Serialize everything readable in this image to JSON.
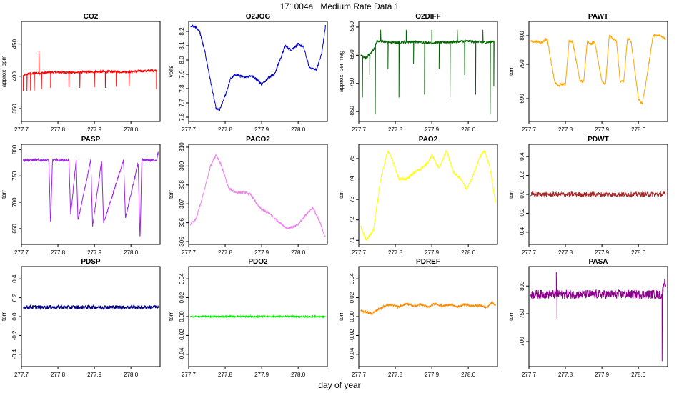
{
  "page": {
    "title": "171004a   Medium Rate Data 1",
    "xlabel": "day of year"
  },
  "x_axis": {
    "range": [
      277.7,
      278.08
    ],
    "ticks": [
      277.7,
      277.8,
      277.9,
      278.0
    ],
    "tick_labels": [
      "277.7",
      "277.8",
      "277.9",
      "278.0"
    ]
  },
  "chart_data": [
    {
      "type": "line",
      "title": "CO2",
      "ylabel": "approx. ppm",
      "color": "#ff0000",
      "ylim": [
        330,
        485
      ],
      "yticks": [
        350,
        400,
        450
      ],
      "ytick_labels": [
        "350",
        "400",
        "450"
      ],
      "series": [
        {
          "x": [
            277.705,
            277.72,
            277.75,
            277.78,
            277.8,
            277.85,
            277.9,
            277.95,
            278.0,
            278.03,
            278.06,
            278.07
          ],
          "y": [
            401,
            404,
            405,
            406,
            406,
            406,
            407,
            407,
            407,
            408,
            409,
            409
          ],
          "spikes": [
            [
              277.705,
              377
            ],
            [
              277.715,
              377
            ],
            [
              277.725,
              378
            ],
            [
              277.735,
              377
            ],
            [
              277.748,
              438
            ],
            [
              277.755,
              380
            ],
            [
              277.78,
              382
            ],
            [
              277.83,
              383
            ],
            [
              277.86,
              382
            ],
            [
              277.9,
              383
            ],
            [
              277.93,
              382
            ],
            [
              277.96,
              384
            ],
            [
              277.995,
              385
            ],
            [
              278.07,
              380
            ]
          ]
        }
      ]
    },
    {
      "type": "line",
      "title": "O2JOG",
      "ylabel": "volts",
      "color": "#0000cc",
      "ylim": [
        7.57,
        8.27
      ],
      "yticks": [
        7.6,
        7.7,
        7.8,
        7.9,
        8.0,
        8.1,
        8.2
      ],
      "ytick_labels": [
        "7.6",
        "7.7",
        "7.8",
        "7.9",
        "8.0",
        "8.1",
        "8.2"
      ],
      "series": [
        {
          "x": [
            277.705,
            277.72,
            277.73,
            277.745,
            277.76,
            277.775,
            277.785,
            277.8,
            277.815,
            277.83,
            277.85,
            277.87,
            277.885,
            277.9,
            277.92,
            277.935,
            277.95,
            277.965,
            277.98,
            278.0,
            278.015,
            278.03,
            278.05,
            278.065,
            278.075
          ],
          "y": [
            8.24,
            8.23,
            8.2,
            8.05,
            7.85,
            7.66,
            7.65,
            7.75,
            7.87,
            7.9,
            7.88,
            7.89,
            7.87,
            7.83,
            7.88,
            7.9,
            8.0,
            8.1,
            8.07,
            8.11,
            8.09,
            7.95,
            7.93,
            8.05,
            8.24
          ]
        }
      ]
    },
    {
      "type": "line",
      "title": "O2DIFF",
      "ylabel": "approx. per meg",
      "color": "#006400",
      "ylim": [
        -885,
        -530
      ],
      "yticks": [
        -850,
        -750,
        -650,
        -550
      ],
      "ytick_labels": [
        "-850",
        "-750",
        "-650",
        "-550"
      ],
      "series": [
        {
          "x": [
            277.705,
            277.72,
            277.74,
            277.75,
            277.8,
            277.85,
            277.9,
            277.95,
            278.0,
            278.05,
            278.07
          ],
          "y": [
            -650,
            -660,
            -630,
            -600,
            -605,
            -602,
            -606,
            -603,
            -600,
            -605,
            -600
          ],
          "spikes": [
            [
              277.71,
              -800
            ],
            [
              277.73,
              -720
            ],
            [
              277.745,
              -860
            ],
            [
              277.76,
              -560
            ],
            [
              277.78,
              -700
            ],
            [
              277.81,
              -800
            ],
            [
              277.83,
              -560
            ],
            [
              277.85,
              -680
            ],
            [
              277.88,
              -790
            ],
            [
              277.9,
              -560
            ],
            [
              277.92,
              -700
            ],
            [
              277.95,
              -800
            ],
            [
              277.97,
              -560
            ],
            [
              277.99,
              -720
            ],
            [
              278.02,
              -790
            ],
            [
              278.04,
              -560
            ],
            [
              278.06,
              -860
            ],
            [
              278.07,
              -760
            ]
          ]
        }
      ]
    },
    {
      "type": "line",
      "title": "PAWT",
      "ylabel": "torr",
      "color": "#ffa500",
      "ylim": [
        650,
        825
      ],
      "yticks": [
        690,
        750,
        800
      ],
      "ytick_labels": [
        "690",
        "750",
        "800"
      ],
      "series": [
        {
          "x": [
            277.705,
            277.72,
            277.735,
            277.75,
            277.77,
            277.78,
            277.79,
            277.8,
            277.81,
            277.82,
            277.84,
            277.85,
            277.86,
            277.87,
            277.88,
            277.9,
            277.91,
            277.92,
            277.94,
            277.95,
            277.96,
            277.97,
            277.98,
            278.0,
            278.01,
            278.02,
            278.04,
            278.06,
            278.075
          ],
          "y": [
            790,
            790,
            788,
            795,
            720,
            712,
            715,
            715,
            790,
            790,
            720,
            720,
            790,
            785,
            790,
            720,
            716,
            800,
            790,
            720,
            720,
            795,
            790,
            690,
            680,
            715,
            800,
            800,
            795
          ]
        }
      ]
    },
    {
      "type": "line",
      "title": "PASP",
      "ylabel": "torr",
      "color": "#a020f0",
      "ylim": [
        620,
        810
      ],
      "yticks": [
        650,
        700,
        750,
        800
      ],
      "ytick_labels": [
        "650",
        "700",
        "750",
        "800"
      ],
      "series": [
        {
          "x": [
            277.705,
            277.72,
            277.775,
            277.78,
            277.785,
            277.81,
            277.83,
            277.835,
            277.85,
            277.855,
            277.89,
            277.895,
            277.92,
            277.925,
            277.98,
            277.985,
            278.02,
            278.025,
            278.03,
            278.07,
            278.075
          ],
          "y": [
            780,
            780,
            780,
            655,
            780,
            780,
            780,
            675,
            780,
            665,
            780,
            655,
            780,
            660,
            780,
            670,
            775,
            625,
            780,
            780,
            795
          ]
        }
      ]
    },
    {
      "type": "line",
      "title": "PACO2",
      "ylabel": "torr",
      "color": "#ee82ee",
      "ylim": [
        304.85,
        310.15
      ],
      "yticks": [
        305,
        306,
        307,
        308,
        309,
        310
      ],
      "ytick_labels": [
        "305",
        "306",
        "307",
        "308",
        "309",
        "310"
      ],
      "series": [
        {
          "x": [
            277.705,
            277.72,
            277.74,
            277.76,
            277.775,
            277.79,
            277.81,
            277.83,
            277.85,
            277.87,
            277.89,
            277.9,
            277.92,
            277.95,
            277.97,
            277.99,
            278.0,
            278.02,
            278.04,
            278.06,
            278.075
          ],
          "y": [
            305.9,
            306.2,
            307.5,
            309.0,
            309.6,
            309.0,
            307.8,
            307.6,
            307.6,
            307.5,
            306.9,
            306.7,
            306.5,
            306.0,
            305.7,
            305.8,
            305.9,
            306.4,
            306.8,
            306.0,
            305.2
          ]
        }
      ]
    },
    {
      "type": "line",
      "title": "PAO2",
      "ylabel": "torr",
      "color": "#ffff00",
      "ylim": [
        70.8,
        75.7
      ],
      "yticks": [
        71,
        72,
        73,
        74,
        75
      ],
      "ytick_labels": [
        "71",
        "72",
        "73",
        "74",
        "75"
      ],
      "series": [
        {
          "x": [
            277.705,
            277.72,
            277.74,
            277.76,
            277.78,
            277.79,
            277.81,
            277.83,
            277.85,
            277.87,
            277.89,
            277.9,
            277.92,
            277.94,
            277.96,
            277.98,
            277.995,
            278.01,
            278.03,
            278.045,
            278.06,
            278.075
          ],
          "y": [
            71.7,
            71.0,
            71.5,
            74.0,
            75.4,
            75.0,
            74.0,
            74.0,
            74.3,
            74.5,
            74.8,
            75.2,
            74.5,
            75.4,
            74.3,
            74.0,
            73.5,
            74.0,
            75.0,
            75.4,
            74.5,
            72.8
          ]
        }
      ]
    },
    {
      "type": "line",
      "title": "PDWT",
      "ylabel": "torr",
      "color": "#a52a2a",
      "ylim": [
        -0.53,
        0.53
      ],
      "yticks": [
        -0.4,
        -0.2,
        0.0,
        0.2,
        0.4
      ],
      "ytick_labels": [
        "-0.4",
        "-0.2",
        "0.0",
        "0.2",
        "0.4"
      ],
      "series": [
        {
          "x": [
            277.705,
            277.75,
            277.8,
            277.85,
            277.9,
            277.95,
            278.0,
            278.05,
            278.075
          ],
          "y": [
            0,
            0,
            0,
            0,
            0,
            0,
            0,
            0,
            0
          ],
          "noise": 0.025
        }
      ]
    },
    {
      "type": "line",
      "title": "PDSP",
      "ylabel": "torr",
      "color": "#000080",
      "ylim": [
        -0.53,
        0.53
      ],
      "yticks": [
        -0.4,
        -0.2,
        0.0,
        0.2,
        0.4
      ],
      "ytick_labels": [
        "-0.4",
        "-0.2",
        "0.0",
        "0.2",
        "0.4"
      ],
      "series": [
        {
          "x": [
            277.705,
            277.75,
            277.8,
            277.85,
            277.9,
            277.95,
            278.0,
            278.05,
            278.075
          ],
          "y": [
            0.1,
            0.1,
            0.1,
            0.1,
            0.1,
            0.1,
            0.1,
            0.1,
            0.1
          ],
          "noise": 0.02
        }
      ]
    },
    {
      "type": "line",
      "title": "PDO2",
      "ylabel": "torr",
      "color": "#00ee00",
      "ylim": [
        -0.053,
        0.053
      ],
      "yticks": [
        -0.04,
        -0.02,
        0.0,
        0.02,
        0.04
      ],
      "ytick_labels": [
        "-0.04",
        "-0.02",
        "0.00",
        "0.02",
        "0.04"
      ],
      "series": [
        {
          "x": [
            277.705,
            277.75,
            277.8,
            277.85,
            277.9,
            277.95,
            278.0,
            278.05,
            278.075
          ],
          "y": [
            0,
            0,
            0,
            0,
            0,
            0,
            0,
            0,
            0
          ],
          "noise": 0.0008
        }
      ]
    },
    {
      "type": "line",
      "title": "PDREF",
      "ylabel": "torr",
      "color": "#ff8c00",
      "ylim": [
        -0.053,
        0.053
      ],
      "yticks": [
        -0.04,
        -0.02,
        0.0,
        0.02,
        0.04
      ],
      "ytick_labels": [
        "-0.04",
        "-0.02",
        "0.00",
        "0.02",
        "0.04"
      ],
      "series": [
        {
          "x": [
            277.705,
            277.72,
            277.735,
            277.75,
            277.77,
            277.79,
            277.81,
            277.83,
            277.85,
            277.87,
            277.89,
            277.91,
            277.93,
            277.95,
            277.97,
            277.99,
            278.01,
            278.03,
            278.05,
            278.065,
            278.075
          ],
          "y": [
            0.006,
            0.005,
            0.003,
            0.007,
            0.011,
            0.013,
            0.01,
            0.014,
            0.011,
            0.013,
            0.01,
            0.014,
            0.011,
            0.013,
            0.01,
            0.013,
            0.011,
            0.012,
            0.01,
            0.015,
            0.012
          ]
        }
      ]
    },
    {
      "type": "line",
      "title": "PASA",
      "ylabel": "torr",
      "color": "#8b008b",
      "ylim": [
        655,
        835
      ],
      "yticks": [
        700,
        750,
        800
      ],
      "ytick_labels": [
        "700",
        "750",
        "800"
      ],
      "series": [
        {
          "x": [
            277.705,
            277.75,
            277.8,
            277.85,
            277.9,
            277.95,
            278.0,
            278.05,
            278.065,
            278.07,
            278.075
          ],
          "y": [
            785,
            785,
            785,
            785,
            785,
            785,
            785,
            785,
            783,
            808,
            805
          ],
          "noise": 8,
          "spikes": [
            [
              277.775,
              825
            ],
            [
              277.777,
              740
            ],
            [
              278.065,
              665
            ]
          ]
        }
      ]
    }
  ]
}
